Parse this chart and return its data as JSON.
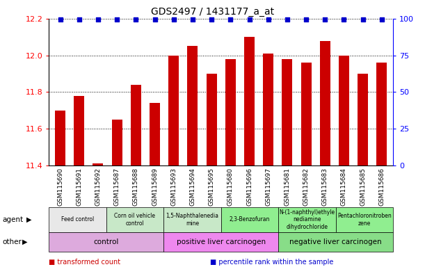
{
  "title": "GDS2497 / 1431177_a_at",
  "samples": [
    "GSM115690",
    "GSM115691",
    "GSM115692",
    "GSM115687",
    "GSM115688",
    "GSM115689",
    "GSM115693",
    "GSM115694",
    "GSM115695",
    "GSM115680",
    "GSM115696",
    "GSM115697",
    "GSM115681",
    "GSM115682",
    "GSM115683",
    "GSM115684",
    "GSM115685",
    "GSM115686"
  ],
  "bar_values": [
    11.7,
    11.78,
    11.41,
    11.65,
    11.84,
    11.74,
    12.0,
    12.05,
    11.9,
    11.98,
    12.1,
    12.01,
    11.98,
    11.96,
    12.08,
    12.0,
    11.9,
    11.96
  ],
  "percentile_values": [
    100,
    100,
    100,
    100,
    100,
    100,
    100,
    100,
    100,
    100,
    100,
    100,
    100,
    100,
    100,
    100,
    100,
    100
  ],
  "ylim": [
    11.4,
    12.2
  ],
  "yticks": [
    11.4,
    11.6,
    11.8,
    12.0,
    12.2
  ],
  "y2lim": [
    0,
    100
  ],
  "y2ticks": [
    0,
    25,
    50,
    75,
    100
  ],
  "bar_color": "#cc0000",
  "percentile_color": "#0000cc",
  "bar_bottom": 11.4,
  "agent_groups": [
    {
      "label": "Feed control",
      "start": 0,
      "end": 3,
      "color": "#e8e8e8"
    },
    {
      "label": "Corn oil vehicle\ncontrol",
      "start": 3,
      "end": 6,
      "color": "#c8e8c8"
    },
    {
      "label": "1,5-Naphthalenedia\nmine",
      "start": 6,
      "end": 9,
      "color": "#c8e8c8"
    },
    {
      "label": "2,3-Benzofuran",
      "start": 9,
      "end": 12,
      "color": "#90ee90"
    },
    {
      "label": "N-(1-naphthyl)ethyle\nnediamine\ndihydrochloride",
      "start": 12,
      "end": 15,
      "color": "#90ee90"
    },
    {
      "label": "Pentachloronitroben\nzene",
      "start": 15,
      "end": 18,
      "color": "#90ee90"
    }
  ],
  "other_groups": [
    {
      "label": "control",
      "start": 0,
      "end": 6,
      "color": "#ddaadd"
    },
    {
      "label": "positive liver carcinogen",
      "start": 6,
      "end": 12,
      "color": "#ee88ee"
    },
    {
      "label": "negative liver carcinogen",
      "start": 12,
      "end": 18,
      "color": "#88dd88"
    }
  ],
  "legend_items": [
    {
      "label": "transformed count",
      "color": "#cc0000"
    },
    {
      "label": "percentile rank within the sample",
      "color": "#0000cc"
    }
  ],
  "agent_label": "agent",
  "other_label": "other",
  "bg_color": "#f0f0f0"
}
